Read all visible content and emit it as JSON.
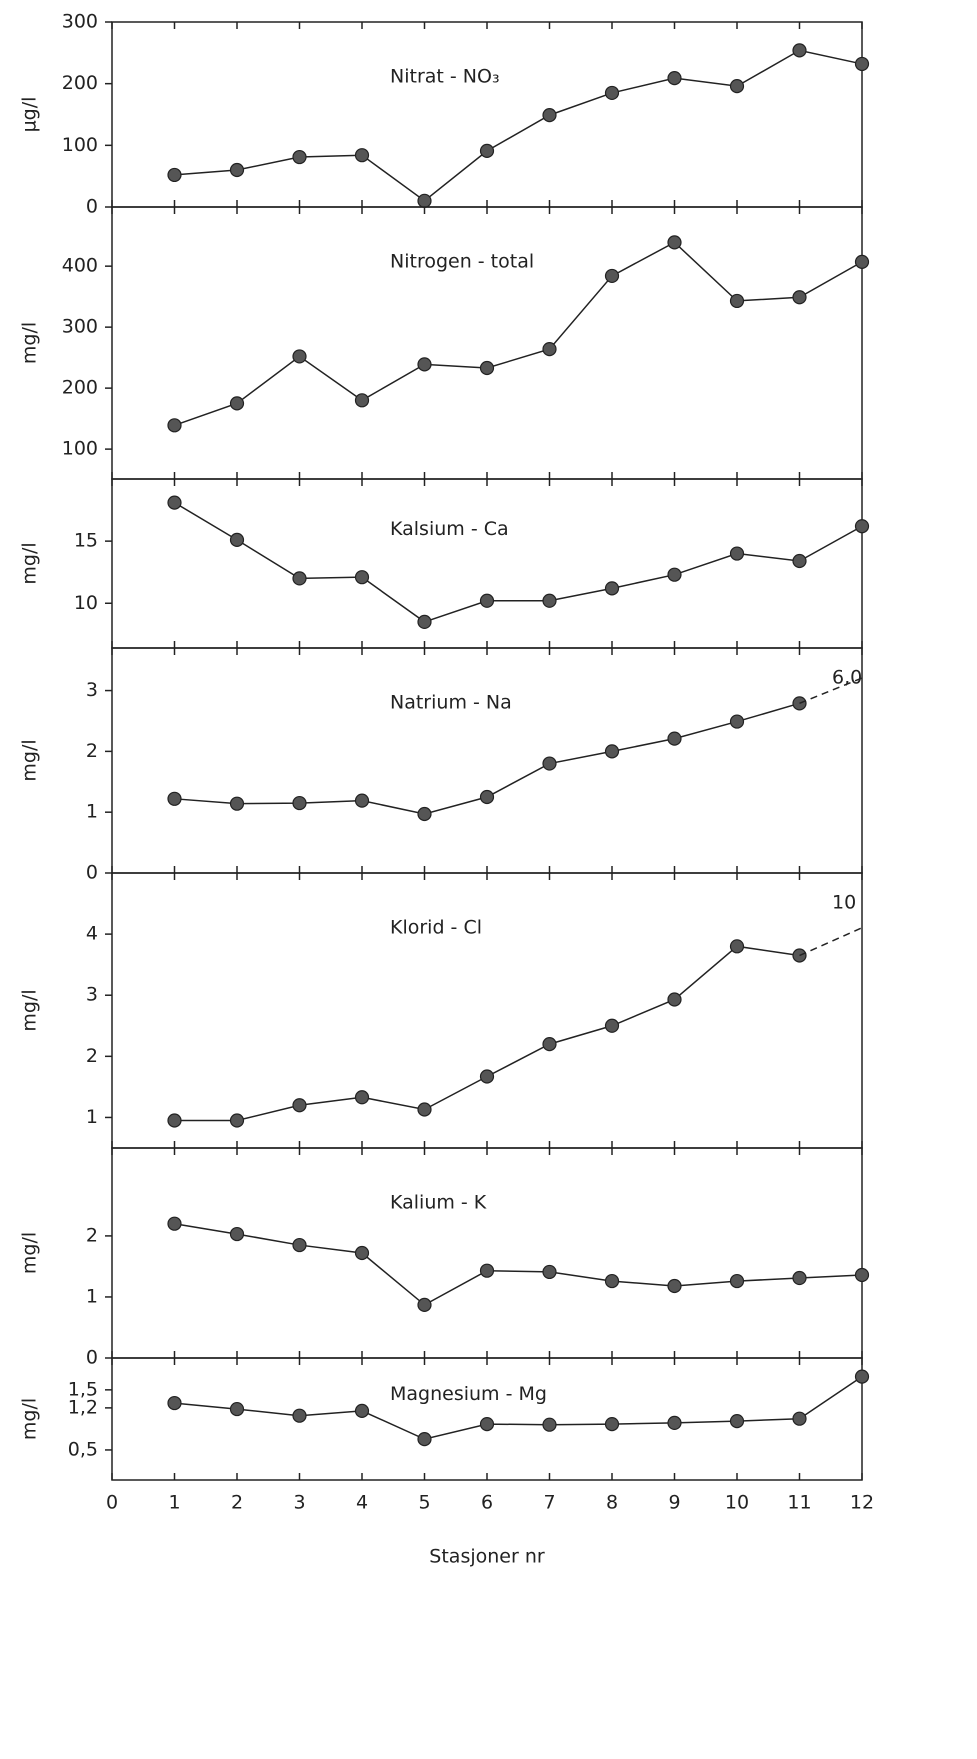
{
  "chart_data": [
    {
      "type": "line",
      "title": "Nitrat - NO₃",
      "ylabel": "µg/l",
      "x": [
        1,
        2,
        3,
        4,
        5,
        6,
        7,
        8,
        9,
        10,
        11,
        12
      ],
      "xlim": [
        0,
        12
      ],
      "values": [
        52,
        60,
        81,
        84,
        10,
        91,
        149,
        185,
        209,
        196,
        254,
        232
      ],
      "color": "#222222",
      "ylim": [
        0,
        300
      ],
      "yticks": [
        0,
        100,
        200,
        300
      ]
    },
    {
      "type": "line",
      "title": "Nitrogen - total",
      "ylabel": "mg/l",
      "x": [
        1,
        2,
        3,
        4,
        5,
        6,
        7,
        8,
        9,
        10,
        11,
        12
      ],
      "xlim": [
        0,
        12
      ],
      "values": [
        139,
        175,
        252,
        180,
        239,
        233,
        264,
        384,
        439,
        343,
        349,
        407
      ],
      "color": "#222222",
      "ylim": [
        51,
        497
      ],
      "yticks": [
        100,
        200,
        300,
        400
      ]
    },
    {
      "type": "line",
      "title": "Kalsium - Ca",
      "ylabel": "mg/l",
      "x": [
        1,
        2,
        3,
        4,
        5,
        6,
        7,
        8,
        9,
        10,
        11,
        12
      ],
      "xlim": [
        0,
        12
      ],
      "values": [
        18.1,
        15.1,
        12.0,
        12.1,
        8.5,
        10.2,
        10.2,
        11.2,
        12.3,
        14.0,
        13.4,
        16.2
      ],
      "color": "#222222",
      "ylim": [
        6.4,
        20
      ],
      "yticks": [
        10,
        15
      ]
    },
    {
      "type": "line",
      "title": "Natrium - Na",
      "ylabel": "mg/l",
      "x": [
        1,
        2,
        3,
        4,
        5,
        6,
        7,
        8,
        9,
        10,
        11,
        12
      ],
      "xlim": [
        0,
        12
      ],
      "values": [
        1.22,
        1.14,
        1.15,
        1.19,
        0.97,
        1.25,
        1.8,
        2.0,
        2.21,
        2.49,
        2.79,
        null
      ],
      "color": "#222222",
      "annotation": "6,0",
      "ylim": [
        0,
        3.7
      ],
      "yticks": [
        0,
        1,
        2,
        3
      ]
    },
    {
      "type": "line",
      "title": "Klorid - Cl",
      "ylabel": "mg/l",
      "x": [
        1,
        2,
        3,
        4,
        5,
        6,
        7,
        8,
        9,
        10,
        11,
        12
      ],
      "xlim": [
        0,
        12
      ],
      "values": [
        0.95,
        0.95,
        1.2,
        1.33,
        1.13,
        1.67,
        2.2,
        2.5,
        2.93,
        3.8,
        3.65,
        null
      ],
      "color": "#222222",
      "annotation": "10",
      "ylim": [
        0.5,
        5
      ],
      "yticks": [
        1,
        2,
        3,
        4
      ]
    },
    {
      "type": "line",
      "title": "Kalium - K",
      "ylabel": "mg/l",
      "x": [
        1,
        2,
        3,
        4,
        5,
        6,
        7,
        8,
        9,
        10,
        11,
        12
      ],
      "xlim": [
        0,
        12
      ],
      "values": [
        2.2,
        2.03,
        1.85,
        1.72,
        0.87,
        1.43,
        1.41,
        1.26,
        1.18,
        1.26,
        1.31,
        1.36
      ],
      "color": "#222222",
      "ylim": [
        0,
        3.44
      ],
      "yticks": [
        0,
        1,
        2
      ]
    },
    {
      "type": "line",
      "title": "Magnesium - Mg",
      "ylabel": "mg/l",
      "x": [
        1,
        2,
        3,
        4,
        5,
        6,
        7,
        8,
        9,
        10,
        11,
        12
      ],
      "xlim": [
        0,
        12
      ],
      "values": [
        1.28,
        1.18,
        1.07,
        1.15,
        0.68,
        0.93,
        0.92,
        0.93,
        0.95,
        0.98,
        1.02,
        1.72
      ],
      "color": "#222222",
      "ylim": [
        0,
        2.03
      ],
      "yticks": [
        {
          "value": 0.5,
          "label": "0,5"
        },
        {
          "value": 1.2,
          "label": "1,2"
        },
        {
          "value": 1.5,
          "label": "1,5"
        }
      ],
      "xticks": [
        0,
        1,
        2,
        3,
        4,
        5,
        6,
        7,
        8,
        9,
        10,
        11,
        12
      ],
      "xlabel": "Stasjoner nr"
    }
  ]
}
